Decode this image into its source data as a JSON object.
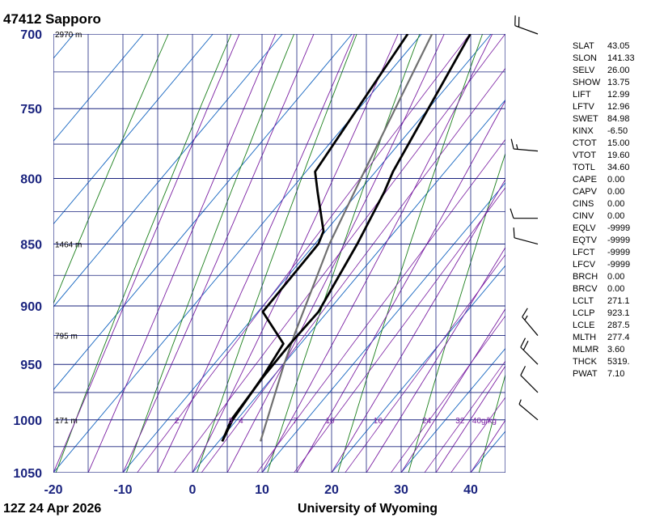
{
  "header": {
    "station": "47412",
    "name": "Sapporo"
  },
  "footer": {
    "time": "12Z 24 Apr 2026",
    "source": "University of Wyoming"
  },
  "colors": {
    "grid": "#1a237e",
    "isotherm": "#1565c0",
    "dry_adiabat": "#1b7f1b",
    "mixing_ratio": "#7b1fa2",
    "moist_adiabat": "#7b1fa2",
    "temperature": "#000000",
    "dewpoint": "#000000",
    "parcel": "#707070",
    "axis_text": "#1a237e"
  },
  "heights": [
    {
      "p": 700,
      "label": "2970 m"
    },
    {
      "p": 850,
      "label": "1464 m"
    },
    {
      "p": 925,
      "label": "795 m"
    },
    {
      "p": 1000,
      "label": "171 m"
    }
  ],
  "mixing_ratio_labels": [
    {
      "label": "2",
      "t": -8.6
    },
    {
      "label": "3",
      "t": -0.9
    },
    {
      "label": "4",
      "t": 0.6
    },
    {
      "label": "7",
      "t": 8.4
    },
    {
      "label": "10",
      "t": 13.4
    },
    {
      "label": "16",
      "t": 20.3
    },
    {
      "label": "24",
      "t": 27.3
    },
    {
      "label": "32",
      "t": 32.1
    },
    {
      "label": "40g/kg",
      "t": 35.6
    }
  ],
  "indices": [
    {
      "name": "SLAT",
      "value": "43.05"
    },
    {
      "name": "SLON",
      "value": "141.33"
    },
    {
      "name": "SELV",
      "value": "26.00"
    },
    {
      "name": "SHOW",
      "value": "13.75"
    },
    {
      "name": "LIFT",
      "value": "12.99"
    },
    {
      "name": "LFTV",
      "value": "12.96"
    },
    {
      "name": "SWET",
      "value": "84.98"
    },
    {
      "name": "KINX",
      "value": "-6.50"
    },
    {
      "name": "CTOT",
      "value": "15.00"
    },
    {
      "name": "VTOT",
      "value": "19.60"
    },
    {
      "name": "TOTL",
      "value": "34.60"
    },
    {
      "name": "CAPE",
      "value": "0.00"
    },
    {
      "name": "CAPV",
      "value": "0.00"
    },
    {
      "name": "CINS",
      "value": "0.00"
    },
    {
      "name": "CINV",
      "value": "0.00"
    },
    {
      "name": "EQLV",
      "value": "-9999"
    },
    {
      "name": "EQTV",
      "value": "-9999"
    },
    {
      "name": "LFCT",
      "value": "-9999"
    },
    {
      "name": "LFCV",
      "value": "-9999"
    },
    {
      "name": "BRCH",
      "value": "0.00"
    },
    {
      "name": "BRCV",
      "value": "0.00"
    },
    {
      "name": "LCLT",
      "value": "271.1"
    },
    {
      "name": "LCLP",
      "value": "923.1"
    },
    {
      "name": "LCLE",
      "value": "287.5"
    },
    {
      "name": "MLTH",
      "value": "277.4"
    },
    {
      "name": "MLMR",
      "value": "3.60"
    },
    {
      "name": "THCK",
      "value": "5319."
    },
    {
      "name": "PWAT",
      "value": "7.10"
    }
  ],
  "chart_data": {
    "type": "skew-t",
    "title": "47412 Sapporo",
    "x_ticks": [
      -20,
      -10,
      0,
      10,
      20,
      30,
      40
    ],
    "y_ticks": [
      700,
      750,
      800,
      850,
      900,
      950,
      1000,
      1050
    ],
    "xlim": [
      -20,
      45
    ],
    "ylim": [
      1050,
      700
    ],
    "y_scale": "log",
    "temperature": [
      {
        "p": 1020,
        "t": 0.5
      },
      {
        "p": 1000,
        "t": -0.6
      },
      {
        "p": 960,
        "t": -1.5
      },
      {
        "p": 932,
        "t": -2.5
      },
      {
        "p": 905,
        "t": -9.3
      },
      {
        "p": 850,
        "t": -9.5
      },
      {
        "p": 840,
        "t": -10.3
      },
      {
        "p": 810,
        "t": -15.9
      },
      {
        "p": 795,
        "t": -18.7
      },
      {
        "p": 700,
        "t": -22.0
      }
    ],
    "dewpoint": [
      {
        "p": 1020,
        "t": 0.5
      },
      {
        "p": 1000,
        "t": -0.8
      },
      {
        "p": 960,
        "t": -1.4
      },
      {
        "p": 932,
        "t": -1.5
      },
      {
        "p": 905,
        "t": -1.3
      },
      {
        "p": 850,
        "t": -3.9
      },
      {
        "p": 810,
        "t": -6.3
      },
      {
        "p": 795,
        "t": -7.5
      },
      {
        "p": 700,
        "t": -13.0
      }
    ],
    "parcel": [
      {
        "p": 1020,
        "t": 6.0
      },
      {
        "p": 950,
        "t": 0.1
      },
      {
        "p": 923,
        "t": -2.1
      },
      {
        "p": 850,
        "t": -7.9
      },
      {
        "p": 800,
        "t": -11.3
      },
      {
        "p": 700,
        "t": -18.5
      }
    ],
    "winds": [
      {
        "p": 1000,
        "dir": 310,
        "kt": 5
      },
      {
        "p": 975,
        "dir": 315,
        "kt": 10
      },
      {
        "p": 950,
        "dir": 315,
        "kt": 20
      },
      {
        "p": 925,
        "dir": 320,
        "kt": 15
      },
      {
        "p": 850,
        "dir": 285,
        "kt": 10
      },
      {
        "p": 830,
        "dir": 270,
        "kt": 10
      },
      {
        "p": 780,
        "dir": 275,
        "kt": 15
      },
      {
        "p": 700,
        "dir": 290,
        "kt": 20
      }
    ]
  }
}
